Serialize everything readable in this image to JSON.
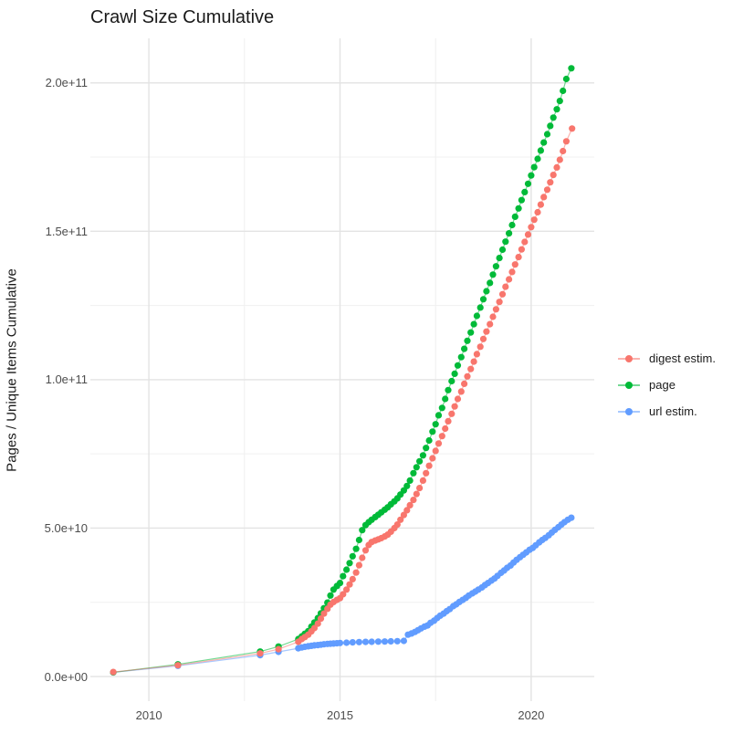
{
  "chart_data": {
    "type": "line",
    "title": "Crawl Size Cumulative",
    "xlabel": "",
    "ylabel": "Pages / Unique Items Cumulative",
    "xlim": [
      2008.47,
      2021.65
    ],
    "ylim_billions": [
      -8.3,
      215
    ],
    "grid": "major and minor, light gray on white",
    "legend_position": "right-center",
    "values_unit": "points are [decimal_year, value_in_1e9]; y tick labels shown in scientific notation",
    "x_ticks": [
      {
        "v": 2010,
        "label": "2010"
      },
      {
        "v": 2015,
        "label": "2015"
      },
      {
        "v": 2020,
        "label": "2020"
      }
    ],
    "y_ticks": [
      {
        "v": 0,
        "label": "0.0e+00"
      },
      {
        "v": 50,
        "label": "5.0e+10"
      },
      {
        "v": 100,
        "label": "1.0e+11"
      },
      {
        "v": 150,
        "label": "1.5e+11"
      },
      {
        "v": 200,
        "label": "2.0e+11"
      }
    ],
    "x_minor": [
      2012.5,
      2017.5
    ],
    "y_minor": [
      25,
      75,
      125,
      175
    ],
    "series": [
      {
        "key": "digest-estim",
        "name": "digest estim.",
        "color": "#F8766D",
        "points": [
          [
            2009.07,
            1.5
          ],
          [
            2010.76,
            3.8
          ],
          [
            2012.91,
            7.8
          ],
          [
            2013.39,
            9.2
          ],
          [
            2013.91,
            11.7
          ],
          [
            2014.0,
            12.6
          ],
          [
            2014.08,
            13.3
          ],
          [
            2014.17,
            14.1
          ],
          [
            2014.25,
            15.2
          ],
          [
            2014.33,
            16.3
          ],
          [
            2014.42,
            17.8
          ],
          [
            2014.5,
            19.5
          ],
          [
            2014.58,
            21.2
          ],
          [
            2014.67,
            22.8
          ],
          [
            2014.75,
            24.2
          ],
          [
            2014.83,
            25.1
          ],
          [
            2014.92,
            25.8
          ],
          [
            2015.0,
            26.4
          ],
          [
            2015.08,
            27.7
          ],
          [
            2015.17,
            29.3
          ],
          [
            2015.25,
            31.0
          ],
          [
            2015.33,
            32.8
          ],
          [
            2015.42,
            35.0
          ],
          [
            2015.5,
            37.5
          ],
          [
            2015.58,
            40.0
          ],
          [
            2015.67,
            42.5
          ],
          [
            2015.75,
            44.3
          ],
          [
            2015.83,
            45.3
          ],
          [
            2015.92,
            45.8
          ],
          [
            2016.0,
            46.2
          ],
          [
            2016.08,
            46.6
          ],
          [
            2016.17,
            47.2
          ],
          [
            2016.25,
            47.8
          ],
          [
            2016.33,
            48.8
          ],
          [
            2016.42,
            50.0
          ],
          [
            2016.5,
            51.2
          ],
          [
            2016.58,
            52.8
          ],
          [
            2016.67,
            54.4
          ],
          [
            2016.75,
            56.0
          ],
          [
            2016.83,
            57.7
          ],
          [
            2016.92,
            59.5
          ],
          [
            2017.0,
            61.5
          ],
          [
            2017.08,
            63.5
          ],
          [
            2017.17,
            66.0
          ],
          [
            2017.25,
            68.5
          ],
          [
            2017.33,
            71.0
          ],
          [
            2017.42,
            73.5
          ],
          [
            2017.5,
            76.0
          ],
          [
            2017.58,
            78.5
          ],
          [
            2017.67,
            81.0
          ],
          [
            2017.75,
            83.5
          ],
          [
            2017.83,
            86.0
          ],
          [
            2017.92,
            88.5
          ],
          [
            2018.0,
            91.0
          ],
          [
            2018.08,
            93.5
          ],
          [
            2018.17,
            96.0
          ],
          [
            2018.25,
            98.6
          ],
          [
            2018.33,
            101.1
          ],
          [
            2018.42,
            103.6
          ],
          [
            2018.5,
            106.1
          ],
          [
            2018.58,
            108.6
          ],
          [
            2018.67,
            111.1
          ],
          [
            2018.75,
            113.7
          ],
          [
            2018.83,
            116.2
          ],
          [
            2018.92,
            118.7
          ],
          [
            2019.0,
            121.2
          ],
          [
            2019.08,
            123.7
          ],
          [
            2019.17,
            126.2
          ],
          [
            2019.25,
            128.8
          ],
          [
            2019.33,
            131.3
          ],
          [
            2019.42,
            133.8
          ],
          [
            2019.5,
            136.3
          ],
          [
            2019.58,
            138.8
          ],
          [
            2019.67,
            141.3
          ],
          [
            2019.75,
            143.9
          ],
          [
            2019.83,
            146.4
          ],
          [
            2019.92,
            148.9
          ],
          [
            2020.0,
            151.4
          ],
          [
            2020.08,
            153.9
          ],
          [
            2020.17,
            156.4
          ],
          [
            2020.25,
            159.0
          ],
          [
            2020.33,
            161.5
          ],
          [
            2020.42,
            164.0
          ],
          [
            2020.5,
            166.5
          ],
          [
            2020.58,
            169.0
          ],
          [
            2020.67,
            171.5
          ],
          [
            2020.75,
            174.1
          ],
          [
            2020.83,
            177.0
          ],
          [
            2020.92,
            180.3
          ],
          [
            2021.07,
            184.6
          ]
        ]
      },
      {
        "key": "page",
        "name": "page",
        "color": "#00BA38",
        "points": [
          [
            2009.07,
            1.4
          ],
          [
            2010.76,
            4.1
          ],
          [
            2012.91,
            8.4
          ],
          [
            2013.39,
            10.1
          ],
          [
            2013.91,
            12.6
          ],
          [
            2014.0,
            13.5
          ],
          [
            2014.08,
            14.4
          ],
          [
            2014.17,
            15.3
          ],
          [
            2014.25,
            16.8
          ],
          [
            2014.33,
            18.2
          ],
          [
            2014.42,
            19.7
          ],
          [
            2014.5,
            21.3
          ],
          [
            2014.58,
            23.0
          ],
          [
            2014.67,
            24.9
          ],
          [
            2014.75,
            27.3
          ],
          [
            2014.83,
            29.3
          ],
          [
            2014.92,
            30.5
          ],
          [
            2015.0,
            31.5
          ],
          [
            2015.08,
            33.8
          ],
          [
            2015.17,
            36.0
          ],
          [
            2015.25,
            38.2
          ],
          [
            2015.33,
            40.5
          ],
          [
            2015.42,
            43.0
          ],
          [
            2015.5,
            46.0
          ],
          [
            2015.58,
            49.3
          ],
          [
            2015.67,
            51.0
          ],
          [
            2015.75,
            52.0
          ],
          [
            2015.83,
            52.8
          ],
          [
            2015.92,
            53.7
          ],
          [
            2016.0,
            54.5
          ],
          [
            2016.08,
            55.3
          ],
          [
            2016.17,
            56.2
          ],
          [
            2016.25,
            57.0
          ],
          [
            2016.33,
            58.0
          ],
          [
            2016.42,
            59.0
          ],
          [
            2016.5,
            60.0
          ],
          [
            2016.58,
            61.3
          ],
          [
            2016.67,
            62.7
          ],
          [
            2016.75,
            64.2
          ],
          [
            2016.83,
            66.0
          ],
          [
            2016.92,
            68.5
          ],
          [
            2017.0,
            70.5
          ],
          [
            2017.08,
            72.5
          ],
          [
            2017.17,
            74.5
          ],
          [
            2017.25,
            77.0
          ],
          [
            2017.33,
            79.5
          ],
          [
            2017.42,
            82.5
          ],
          [
            2017.5,
            85.0
          ],
          [
            2017.58,
            88.0
          ],
          [
            2017.67,
            90.5
          ],
          [
            2017.75,
            93.5
          ],
          [
            2017.83,
            96.5
          ],
          [
            2017.92,
            99.5
          ],
          [
            2018.0,
            102.0
          ],
          [
            2018.08,
            104.8
          ],
          [
            2018.17,
            107.6
          ],
          [
            2018.25,
            110.4
          ],
          [
            2018.33,
            113.1
          ],
          [
            2018.42,
            115.9
          ],
          [
            2018.5,
            118.7
          ],
          [
            2018.58,
            121.5
          ],
          [
            2018.67,
            124.3
          ],
          [
            2018.75,
            127.1
          ],
          [
            2018.83,
            129.8
          ],
          [
            2018.92,
            132.6
          ],
          [
            2019.0,
            135.4
          ],
          [
            2019.08,
            138.2
          ],
          [
            2019.17,
            141.0
          ],
          [
            2019.25,
            143.8
          ],
          [
            2019.33,
            146.5
          ],
          [
            2019.42,
            149.3
          ],
          [
            2019.5,
            152.1
          ],
          [
            2019.58,
            154.9
          ],
          [
            2019.67,
            157.7
          ],
          [
            2019.75,
            160.5
          ],
          [
            2019.83,
            163.2
          ],
          [
            2019.92,
            166.0
          ],
          [
            2020.0,
            168.8
          ],
          [
            2020.08,
            171.6
          ],
          [
            2020.17,
            174.4
          ],
          [
            2020.25,
            177.2
          ],
          [
            2020.33,
            179.9
          ],
          [
            2020.42,
            182.7
          ],
          [
            2020.5,
            185.5
          ],
          [
            2020.58,
            188.3
          ],
          [
            2020.67,
            191.1
          ],
          [
            2020.75,
            193.9
          ],
          [
            2020.83,
            197.3
          ],
          [
            2020.92,
            201.3
          ],
          [
            2021.05,
            204.9
          ]
        ]
      },
      {
        "key": "url-estim",
        "name": "url estim.",
        "color": "#619CFF",
        "points": [
          [
            2009.07,
            1.4
          ],
          [
            2010.76,
            3.6
          ],
          [
            2012.91,
            7.2
          ],
          [
            2013.39,
            8.3
          ],
          [
            2013.91,
            9.5
          ],
          [
            2014.0,
            9.8
          ],
          [
            2014.08,
            10.0
          ],
          [
            2014.17,
            10.2
          ],
          [
            2014.25,
            10.35
          ],
          [
            2014.33,
            10.5
          ],
          [
            2014.42,
            10.6
          ],
          [
            2014.5,
            10.7
          ],
          [
            2014.58,
            10.85
          ],
          [
            2014.67,
            11.0
          ],
          [
            2014.75,
            11.05
          ],
          [
            2014.83,
            11.1
          ],
          [
            2014.92,
            11.2
          ],
          [
            2015.0,
            11.3
          ],
          [
            2015.17,
            11.4
          ],
          [
            2015.33,
            11.5
          ],
          [
            2015.5,
            11.6
          ],
          [
            2015.67,
            11.65
          ],
          [
            2015.83,
            11.7
          ],
          [
            2016.0,
            11.75
          ],
          [
            2016.17,
            11.8
          ],
          [
            2016.33,
            11.85
          ],
          [
            2016.5,
            11.9
          ],
          [
            2016.67,
            12.0
          ],
          [
            2016.78,
            14.1
          ],
          [
            2016.87,
            14.5
          ],
          [
            2016.96,
            15.0
          ],
          [
            2017.04,
            15.6
          ],
          [
            2017.12,
            16.2
          ],
          [
            2017.21,
            16.8
          ],
          [
            2017.29,
            17.2
          ],
          [
            2017.37,
            18.1
          ],
          [
            2017.46,
            18.8
          ],
          [
            2017.54,
            19.7
          ],
          [
            2017.62,
            20.5
          ],
          [
            2017.71,
            21.2
          ],
          [
            2017.79,
            22.0
          ],
          [
            2017.87,
            22.7
          ],
          [
            2017.96,
            23.7
          ],
          [
            2018.04,
            24.3
          ],
          [
            2018.12,
            25.1
          ],
          [
            2018.21,
            25.8
          ],
          [
            2018.29,
            26.5
          ],
          [
            2018.37,
            27.3
          ],
          [
            2018.46,
            28.0
          ],
          [
            2018.54,
            28.6
          ],
          [
            2018.62,
            29.3
          ],
          [
            2018.71,
            30.0
          ],
          [
            2018.79,
            30.8
          ],
          [
            2018.87,
            31.5
          ],
          [
            2018.96,
            32.3
          ],
          [
            2019.04,
            33.0
          ],
          [
            2019.12,
            33.9
          ],
          [
            2019.21,
            34.9
          ],
          [
            2019.29,
            35.7
          ],
          [
            2019.37,
            36.6
          ],
          [
            2019.46,
            37.4
          ],
          [
            2019.54,
            38.4
          ],
          [
            2019.62,
            39.3
          ],
          [
            2019.71,
            40.2
          ],
          [
            2019.79,
            41.0
          ],
          [
            2019.87,
            41.8
          ],
          [
            2019.96,
            42.7
          ],
          [
            2020.04,
            43.3
          ],
          [
            2020.12,
            44.2
          ],
          [
            2020.21,
            45.2
          ],
          [
            2020.29,
            46.0
          ],
          [
            2020.37,
            46.7
          ],
          [
            2020.46,
            47.6
          ],
          [
            2020.54,
            48.5
          ],
          [
            2020.62,
            49.4
          ],
          [
            2020.71,
            50.3
          ],
          [
            2020.79,
            51.2
          ],
          [
            2020.87,
            52.0
          ],
          [
            2020.96,
            52.8
          ],
          [
            2021.05,
            53.5
          ]
        ]
      }
    ]
  }
}
